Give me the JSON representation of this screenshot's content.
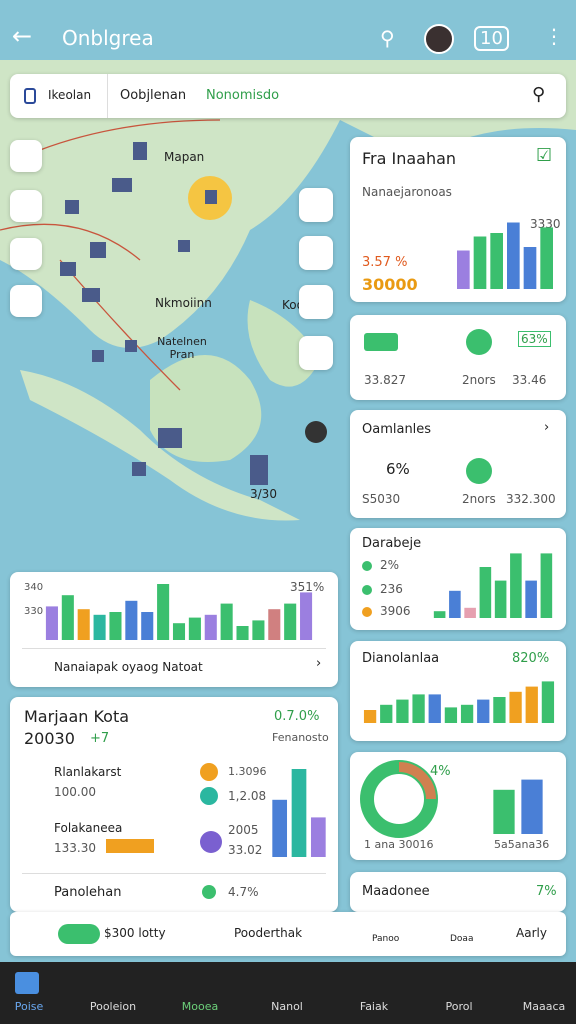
{
  "header": {
    "title": "Onblgrea",
    "badge": "10"
  },
  "search": {
    "tabs": [
      "Ikeolan",
      "Oobjlenan",
      "Nonomisdo"
    ]
  },
  "map": {
    "labels": [
      "Mapan",
      "Nkmoiinn",
      "Natelnen Pran",
      "Koo",
      "3/30"
    ]
  },
  "right": [
    {
      "title": "Fra Inaahan",
      "subtitle": "Nanaejaronoas",
      "pct": "3.57 %",
      "amount": "30000",
      "peak": "3330",
      "chart": {
        "ylim": [
          0,
          100
        ],
        "values": [
          55,
          75,
          80,
          95,
          60,
          88
        ],
        "colors": [
          "#9b7fe0",
          "#3bbf6e",
          "#3bbf6e",
          "#4a7fd6",
          "#4a7fd6",
          "#3bbf6e"
        ]
      }
    },
    {
      "badge": "63%",
      "a": "33.827",
      "b": "2nors",
      "c": "33.46"
    },
    {
      "title": "Oamlanles",
      "pct": "6%",
      "a": "S5030",
      "b": "2nors",
      "c": "332.300"
    },
    {
      "title": "Darabeje",
      "items": [
        "2%",
        "236",
        "3906"
      ],
      "chart": {
        "ylim": [
          0,
          100
        ],
        "values": [
          10,
          40,
          15,
          75,
          55,
          95,
          55,
          95
        ],
        "colors": [
          "#3bbf6e",
          "#4a7fd6",
          "#e6a0b0",
          "#3bbf6e",
          "#3bbf6e",
          "#3bbf6e",
          "#4a7fd6",
          "#3bbf6e"
        ]
      }
    },
    {
      "title": "Dianolanlaa",
      "pct": "820%",
      "chart": {
        "ylim": [
          0,
          100
        ],
        "values": [
          25,
          35,
          45,
          55,
          55,
          30,
          35,
          45,
          50,
          60,
          70,
          80
        ],
        "colors": [
          "#f0a020",
          "#3bbf6e",
          "#3bbf6e",
          "#3bbf6e",
          "#4a7fd6",
          "#3bbf6e",
          "#3bbf6e",
          "#4a7fd6",
          "#3bbf6e",
          "#f0a020",
          "#f0a020",
          "#3bbf6e"
        ]
      }
    },
    {
      "pct": "4%",
      "a": "1 ana 30016",
      "b": "5a5ana36",
      "chart": {
        "ylim": [
          0,
          100
        ],
        "values": [
          65,
          80
        ],
        "colors": [
          "#3bbf6e",
          "#4a7fd6"
        ]
      }
    },
    {
      "title": "Maadonee",
      "pct": "7%"
    }
  ],
  "left": [
    {
      "yl": [
        "340",
        "330"
      ],
      "peak": "351%",
      "link": "Nanaiapak oyaog Natoat",
      "chart": {
        "ylim": [
          0,
          100
        ],
        "values": [
          60,
          80,
          55,
          45,
          50,
          70,
          50,
          100,
          30,
          40,
          45,
          65,
          25,
          35,
          55,
          65,
          85
        ],
        "colors": [
          "#9b7fe0",
          "#3bbf6e",
          "#f0a020",
          "#2bb7a0",
          "#3bbf6e",
          "#4a7fd6",
          "#4a7fd6",
          "#3bbf6e",
          "#3bbf6e",
          "#3bbf6e",
          "#9b7fe0",
          "#3bbf6e",
          "#3bbf6e",
          "#3bbf6e",
          "#d08080",
          "#3bbf6e",
          "#9b7fe0"
        ]
      }
    },
    {
      "title": "Marjaan Kota",
      "year": "20030",
      "delta": "+7",
      "pct": "0.7.0%",
      "note": "Fenanosto",
      "rows": [
        [
          "Rlanlakarst",
          "100.00"
        ],
        [
          "Folakaneea",
          "133.30"
        ]
      ],
      "stats": [
        "1.3096",
        "1,2.08",
        "2005",
        "33.02"
      ],
      "foot": [
        "Panolehan",
        "4.7%"
      ],
      "chart": {
        "ylim": [
          0,
          100
        ],
        "values": [
          65,
          100,
          45
        ],
        "colors": [
          "#4a7fd6",
          "#2bb7a0",
          "#9b7fe0"
        ]
      }
    }
  ],
  "actions": [
    "$300 lotty",
    "Pooderthak",
    "Panoo",
    "Doaa",
    "Aarly"
  ],
  "nav": [
    "Poise",
    "Pooleion",
    "Mooea",
    "Nanol",
    "Faiak",
    "Porol",
    "Maaaca"
  ]
}
